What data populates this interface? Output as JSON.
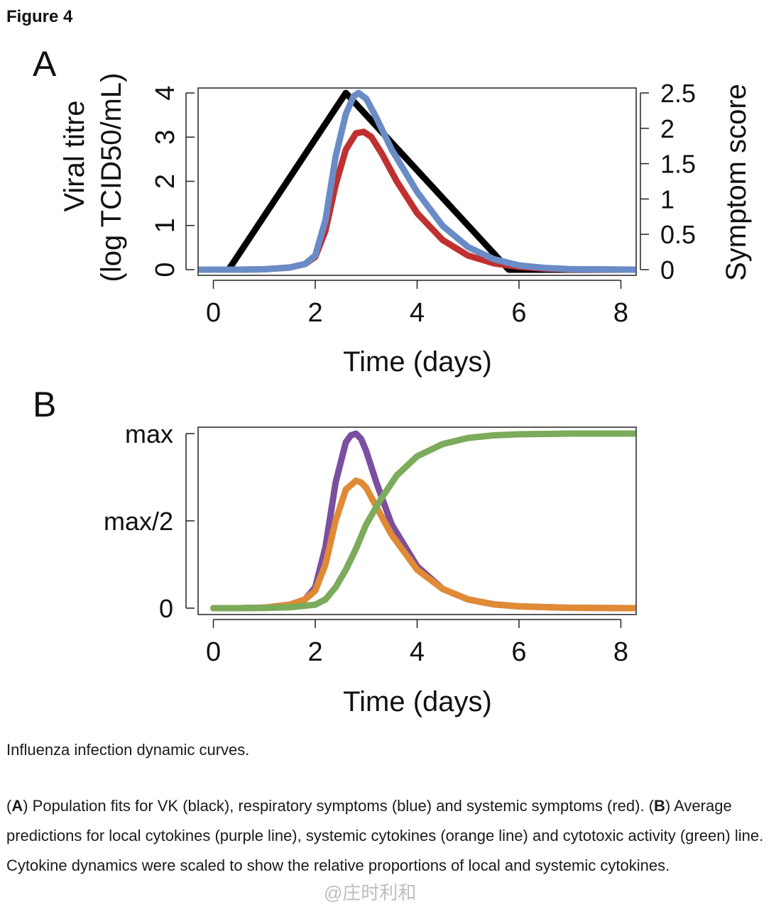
{
  "figure": {
    "title": "Figure 4",
    "caption_short": "Influenza infection dynamic curves.",
    "caption_long": {
      "A_label": "A",
      "A_text": ") Population fits for VK (black), respiratory symptoms (blue) and systemic symptoms (red). (",
      "B_label": "B",
      "B_text": ") Average predictions for local cytokines (purple line), systemic cytokines (orange line) and cytotoxic activity (green) line. Cytokine dynamics were scaled to show the relative proportions of local and systemic cytokines."
    },
    "watermark": "@庄时利和"
  },
  "chart_data": [
    {
      "panel": "A",
      "type": "line",
      "xlabel": "Time (days)",
      "ylabel_line1": "Viral titre",
      "ylabel_line2": "(log TCID50/mL)",
      "y2label": "Symptom score",
      "xlim": [
        -0.3,
        8.3
      ],
      "ylim": [
        0,
        4
      ],
      "y2lim": [
        0,
        2.5
      ],
      "xticks": [
        0,
        2,
        4,
        6,
        8
      ],
      "yticks": [
        0,
        1,
        2,
        3,
        4
      ],
      "y2ticks": [
        "0",
        "0.5",
        "1",
        "1.5",
        "2",
        "2.5"
      ],
      "series": [
        {
          "name": "VK (black)",
          "color": "#000000",
          "axis": "left",
          "x": [
            -0.3,
            0.3,
            2.6,
            5.8,
            8.3
          ],
          "y": [
            0,
            0,
            4.0,
            0,
            0
          ]
        },
        {
          "name": "Systemic symptoms (red)",
          "color": "#c03030",
          "axis": "right",
          "x": [
            -0.3,
            0.5,
            1.0,
            1.5,
            1.8,
            2.0,
            2.2,
            2.4,
            2.6,
            2.8,
            2.95,
            3.1,
            3.3,
            3.6,
            4.0,
            4.5,
            5.0,
            5.5,
            6.0,
            6.5,
            7.0,
            8.3
          ],
          "y": [
            0,
            0,
            0.005,
            0.03,
            0.08,
            0.18,
            0.55,
            1.2,
            1.7,
            1.93,
            1.95,
            1.88,
            1.65,
            1.25,
            0.8,
            0.42,
            0.2,
            0.09,
            0.04,
            0.015,
            0.005,
            0
          ]
        },
        {
          "name": "Respiratory symptoms (blue)",
          "color": "#6a8cc6",
          "axis": "right",
          "x": [
            -0.3,
            0.5,
            1.0,
            1.5,
            1.8,
            2.0,
            2.2,
            2.4,
            2.6,
            2.75,
            2.85,
            3.0,
            3.2,
            3.5,
            4.0,
            4.5,
            5.0,
            5.5,
            6.0,
            6.5,
            7.0,
            8.3
          ],
          "y": [
            0,
            0,
            0.005,
            0.03,
            0.08,
            0.2,
            0.7,
            1.6,
            2.2,
            2.45,
            2.5,
            2.42,
            2.15,
            1.7,
            1.1,
            0.62,
            0.32,
            0.15,
            0.06,
            0.025,
            0.008,
            0
          ]
        }
      ]
    },
    {
      "panel": "B",
      "type": "line",
      "xlabel": "Time (days)",
      "ylabel": "",
      "xlim": [
        -0.3,
        8.3
      ],
      "ylim": [
        0,
        1
      ],
      "xticks": [
        0,
        2,
        4,
        6,
        8
      ],
      "yticks": [
        0,
        0.5,
        1
      ],
      "ytick_labels": [
        "0",
        "max/2",
        "max"
      ],
      "series": [
        {
          "name": "Local cytokines (purple)",
          "color": "#7b4fa0",
          "x": [
            0,
            0.5,
            1.0,
            1.5,
            1.8,
            2.0,
            2.2,
            2.4,
            2.6,
            2.7,
            2.8,
            2.9,
            3.0,
            3.2,
            3.5,
            4.0,
            4.5,
            5.0,
            5.5,
            6.0,
            7.0,
            8.3
          ],
          "y": [
            0,
            0,
            0.003,
            0.02,
            0.05,
            0.12,
            0.35,
            0.72,
            0.95,
            0.99,
            1.0,
            0.97,
            0.9,
            0.72,
            0.48,
            0.24,
            0.11,
            0.05,
            0.022,
            0.01,
            0.002,
            0
          ]
        },
        {
          "name": "Systemic cytokines (orange)",
          "color": "#e08a35",
          "x": [
            0,
            0.5,
            1.0,
            1.5,
            1.8,
            2.0,
            2.2,
            2.4,
            2.6,
            2.8,
            2.9,
            3.0,
            3.2,
            3.5,
            4.0,
            4.5,
            5.0,
            5.5,
            6.0,
            7.0,
            8.3
          ],
          "y": [
            0,
            0,
            0.003,
            0.02,
            0.05,
            0.1,
            0.25,
            0.5,
            0.68,
            0.73,
            0.72,
            0.69,
            0.58,
            0.42,
            0.22,
            0.11,
            0.05,
            0.022,
            0.01,
            0.002,
            0
          ]
        },
        {
          "name": "Cytotoxic activity (green)",
          "color": "#7bab5b",
          "x": [
            0,
            0.5,
            1.0,
            1.5,
            2.0,
            2.2,
            2.4,
            2.6,
            2.8,
            3.0,
            3.3,
            3.6,
            4.0,
            4.5,
            5.0,
            5.5,
            6.0,
            7.0,
            8.3
          ],
          "y": [
            0,
            0,
            0.001,
            0.005,
            0.02,
            0.05,
            0.12,
            0.22,
            0.34,
            0.48,
            0.63,
            0.76,
            0.87,
            0.94,
            0.975,
            0.99,
            0.996,
            1.0,
            1.0
          ]
        }
      ]
    }
  ]
}
